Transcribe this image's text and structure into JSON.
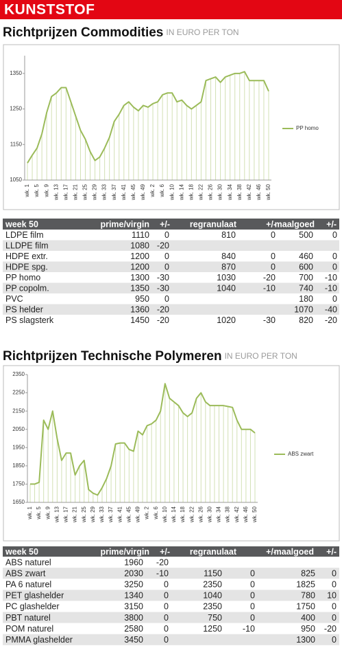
{
  "header": {
    "title": "KUNSTSTOF"
  },
  "sections": [
    {
      "title": "Richtprijzen Commodities",
      "subtitle": "IN EURO PER TON"
    },
    {
      "title": "Richtprijzen Technische Polymeren",
      "subtitle": "IN EURO PER TON"
    }
  ],
  "chart_data": [
    {
      "type": "line",
      "categories": [
        "wk. 1",
        null,
        "wk. 5",
        null,
        "wk. 9",
        null,
        "wk. 13",
        null,
        "wk. 17",
        null,
        "wk. 21",
        null,
        "wk. 25",
        null,
        "wk. 29",
        null,
        "wk. 33",
        null,
        "wk. 37",
        null,
        "wk. 41",
        null,
        "wk. 45",
        null,
        "wk. 49",
        null,
        "wk. 2",
        null,
        "wk. 6",
        null,
        "wk. 10",
        null,
        "wk. 14",
        null,
        "wk. 18",
        null,
        "wk. 22",
        null,
        "wk. 26",
        null,
        "wk. 30",
        null,
        "wk. 34",
        null,
        "wk. 38",
        null,
        "wk. 42",
        null,
        "wk. 46",
        null,
        "wk. 50"
      ],
      "series": [
        {
          "name": "PP homo",
          "color": "#9bbb59",
          "values": [
            1098,
            1120,
            1140,
            1180,
            1240,
            1285,
            1295,
            1310,
            1310,
            1270,
            1230,
            1190,
            1165,
            1130,
            1105,
            1115,
            1140,
            1170,
            1215,
            1235,
            1260,
            1270,
            1255,
            1245,
            1260,
            1255,
            1265,
            1270,
            1290,
            1295,
            1295,
            1270,
            1275,
            1260,
            1250,
            1260,
            1270,
            1330,
            1335,
            1340,
            1325,
            1340,
            1345,
            1350,
            1350,
            1355,
            1330,
            1330,
            1330,
            1330,
            1300
          ]
        }
      ],
      "ylim": [
        1050,
        1400
      ],
      "yticks": [
        1050,
        1150,
        1250,
        1350
      ],
      "grid": false,
      "legend": "right"
    },
    {
      "type": "line",
      "categories": [
        "wk. 1",
        null,
        "wk. 5",
        null,
        "wk. 9",
        null,
        "wk. 13",
        null,
        "wk. 17",
        null,
        "wk. 21",
        null,
        "wk. 25",
        null,
        "wk. 29",
        null,
        "wk. 33",
        null,
        "wk. 37",
        null,
        "wk. 41",
        null,
        "wk. 45",
        null,
        "wk. 49",
        null,
        "wk. 2",
        null,
        "wk. 6",
        null,
        "wk. 10",
        null,
        "wk. 14",
        null,
        "wk. 18",
        null,
        "wk. 22",
        null,
        "wk. 26",
        null,
        "wk. 30",
        null,
        "wk. 34",
        null,
        "wk. 38",
        null,
        "wk. 42",
        null,
        "wk. 46",
        null,
        "wk. 50"
      ],
      "series": [
        {
          "name": "ABS zwart",
          "color": "#9bbb59",
          "values": [
            1750,
            1750,
            1760,
            2100,
            2050,
            2150,
            2000,
            1880,
            1920,
            1920,
            1800,
            1850,
            1880,
            1720,
            1700,
            1690,
            1730,
            1780,
            1850,
            1970,
            1975,
            1975,
            1940,
            1930,
            2040,
            2020,
            2070,
            2080,
            2100,
            2150,
            2300,
            2220,
            2200,
            2180,
            2140,
            2120,
            2140,
            2220,
            2250,
            2200,
            2180,
            2180,
            2180,
            2180,
            2175,
            2170,
            2100,
            2050,
            2050,
            2050,
            2030
          ]
        }
      ],
      "ylim": [
        1650,
        2350
      ],
      "yticks": [
        1650,
        1750,
        1850,
        1950,
        2050,
        2150,
        2250,
        2350
      ],
      "grid": false,
      "legend": "right"
    }
  ],
  "tables": [
    {
      "columns": [
        "week 50",
        "prime/virgin",
        "+/-",
        "regranulaat",
        "+/-",
        "maalgoed",
        "+/-"
      ],
      "rows": [
        [
          "LDPE film",
          1110,
          0,
          810,
          0,
          500,
          0
        ],
        [
          "LLDPE film",
          1080,
          -20,
          null,
          null,
          null,
          null
        ],
        [
          "HDPE extr.",
          1200,
          0,
          840,
          0,
          460,
          0
        ],
        [
          "HDPE spg.",
          1200,
          0,
          870,
          0,
          600,
          0
        ],
        [
          "PP homo",
          1300,
          -30,
          1030,
          -20,
          700,
          -10
        ],
        [
          "PP copolm.",
          1350,
          -30,
          1040,
          -10,
          740,
          -10
        ],
        [
          "PVC",
          950,
          0,
          null,
          null,
          180,
          0
        ],
        [
          "PS helder",
          1360,
          -20,
          null,
          null,
          1070,
          -40
        ],
        [
          "PS slagsterk",
          1450,
          -20,
          1020,
          -30,
          820,
          -20
        ]
      ]
    },
    {
      "columns": [
        "week 50",
        "prime/virgin",
        "+/-",
        "regranulaat",
        "+/-",
        "maalgoed",
        "+/-"
      ],
      "rows": [
        [
          "ABS naturel",
          1960,
          -20,
          null,
          null,
          null,
          null
        ],
        [
          "ABS zwart",
          2030,
          -10,
          1150,
          0,
          825,
          0
        ],
        [
          "PA 6 naturel",
          3250,
          0,
          2350,
          0,
          1825,
          0
        ],
        [
          "PET glashelder",
          1340,
          0,
          1040,
          0,
          780,
          10
        ],
        [
          "PC glashelder",
          3150,
          0,
          2350,
          0,
          1750,
          0
        ],
        [
          "PBT naturel",
          3800,
          0,
          750,
          0,
          400,
          0
        ],
        [
          "POM naturel",
          2580,
          0,
          1250,
          -10,
          950,
          -20
        ],
        [
          "PMMA glashelder",
          3450,
          0,
          null,
          null,
          1300,
          0
        ]
      ]
    }
  ]
}
